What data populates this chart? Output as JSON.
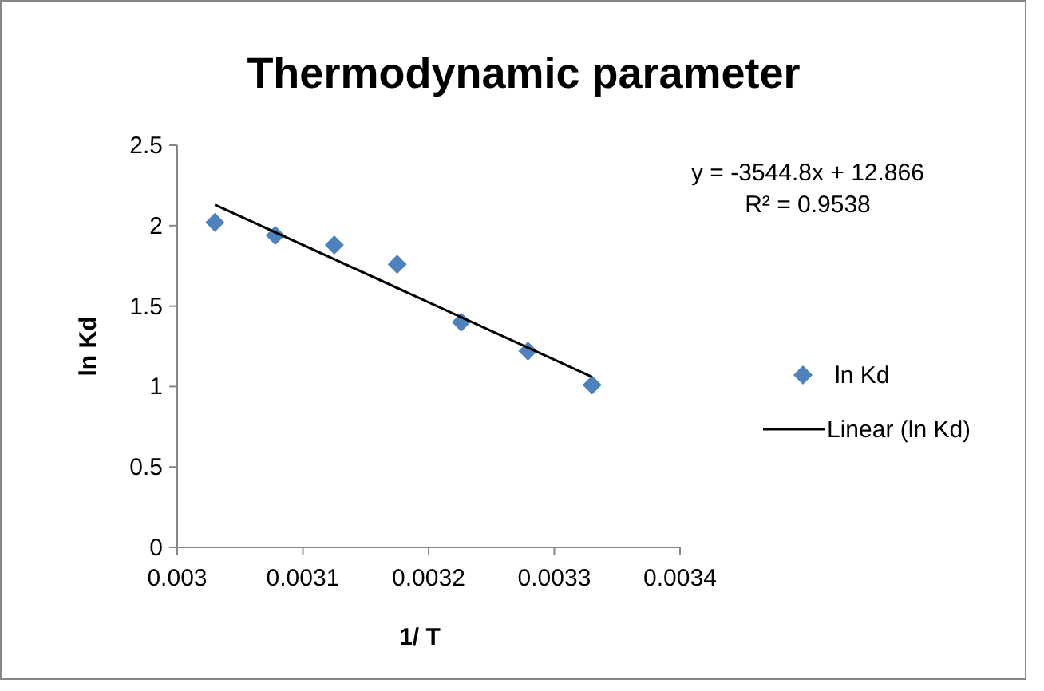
{
  "chart_data": {
    "type": "scatter",
    "title": "Thermodynamic parameter",
    "xlabel": "1/ T",
    "ylabel": "ln Kd",
    "xlim": [
      0.003,
      0.0034
    ],
    "xticks": [
      0.003,
      0.0031,
      0.0032,
      0.0033,
      0.0034
    ],
    "ylim": [
      0,
      2.5
    ],
    "yticks": [
      0,
      0.5,
      1,
      1.5,
      2,
      2.5
    ],
    "grid": false,
    "legend": "right",
    "marker": "diamond",
    "annotations": [
      "y = -3544.8x + 12.866",
      "R² = 0.9538"
    ],
    "series": [
      {
        "name": "ln Kd",
        "color": "#4f81bd",
        "x": [
          0.00303,
          0.003078,
          0.003125,
          0.003175,
          0.003226,
          0.003279,
          0.00333
        ],
        "values": [
          2.02,
          1.94,
          1.88,
          1.76,
          1.4,
          1.22,
          1.01
        ]
      },
      {
        "name": "Linear (ln Kd)",
        "type": "line",
        "color": "#000000",
        "marker": "none",
        "x": [
          0.00303,
          0.00333
        ],
        "values": [
          2.13,
          1.06
        ]
      }
    ]
  }
}
